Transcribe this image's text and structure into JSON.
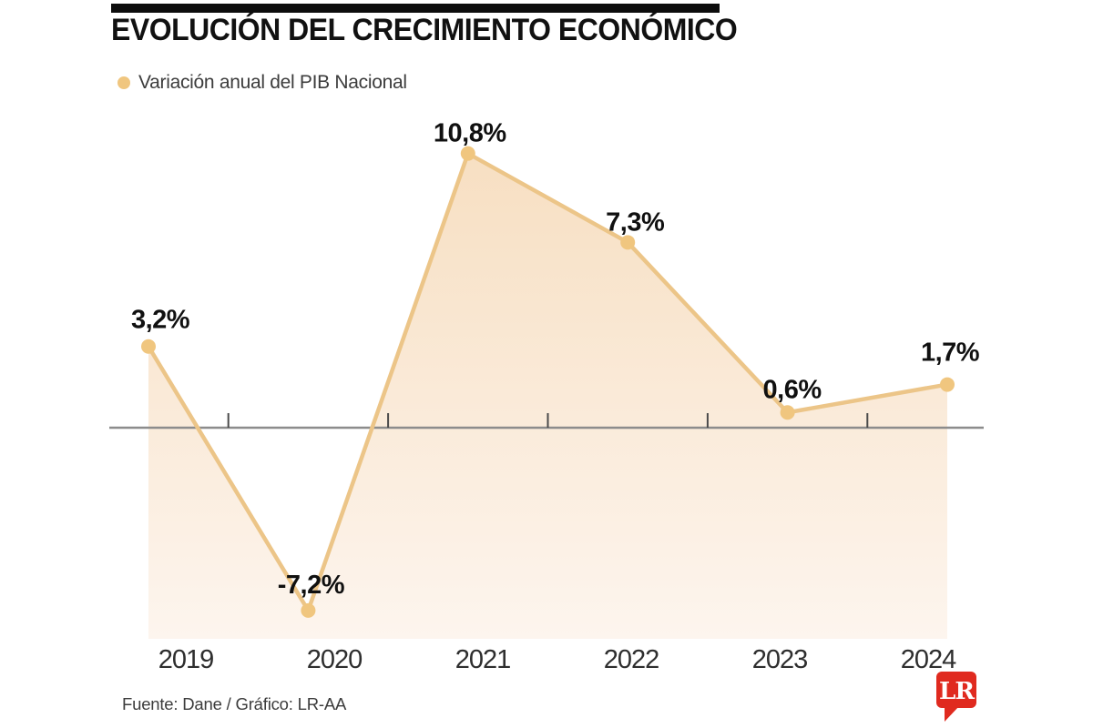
{
  "header": {
    "title": "EVOLUCIÓN DEL CRECIMIENTO ECONÓMICO"
  },
  "legend": {
    "label": "Variación anual del PIB Nacional",
    "marker_color": "#f0c67f"
  },
  "chart_data": {
    "type": "area",
    "title": "EVOLUCIÓN DEL CRECIMIENTO ECONÓMICO",
    "categories": [
      "2019",
      "2020",
      "2021",
      "2022",
      "2023",
      "2024"
    ],
    "series": [
      {
        "name": "Variación anual del PIB Nacional",
        "values": [
          3.2,
          -7.2,
          10.8,
          7.3,
          0.6,
          1.7
        ]
      }
    ],
    "value_labels": [
      "3,2%",
      "-7,2%",
      "10,8%",
      "7,3%",
      "0,6%",
      "1,7%"
    ],
    "xlabel": "",
    "ylabel": "",
    "ylim": [
      -8.7,
      11
    ],
    "grid": false,
    "legend_position": "top-left",
    "baseline": 0,
    "colors": {
      "line": "#ecc588",
      "point": "#f0c67f",
      "fill_top": "#f7dfc2",
      "fill_bottom": "#fdf5ee",
      "axis": "#8c8c8c",
      "tick": "#4a4a4a"
    }
  },
  "footer": {
    "source": "Fuente: Dane / Gráfico: LR-AA",
    "logo_text": "LR",
    "logo_color": "#e02a1f"
  }
}
